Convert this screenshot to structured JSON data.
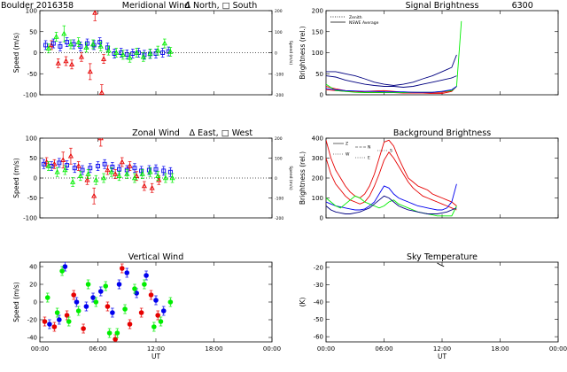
{
  "page": {
    "site": "Boulder",
    "date_code": "2016358"
  },
  "chart_data": [
    {
      "id": "meridional",
      "type": "scatter",
      "title": "Meridional Wind",
      "legend_text": "Δ North, □ South",
      "xlabel": "",
      "ylabel": "Speed (m/s)",
      "ylabel_right": "Speed (m/s)",
      "xlim": [
        0,
        24
      ],
      "ylim": [
        -100,
        100
      ],
      "yticks": [
        -100,
        -50,
        0,
        50,
        100
      ],
      "yticks_right": [
        "-200",
        "-100",
        "0",
        "100",
        "200"
      ],
      "xticks": [],
      "grid": false,
      "series": [
        {
          "color": "#e60000",
          "x": [
            1.2,
            1.9,
            2.7,
            3.3,
            4.3,
            5.2,
            5.7,
            6.4,
            6.6
          ],
          "y": [
            18,
            -25,
            -20,
            -28,
            -10,
            -45,
            95,
            -95,
            -15
          ]
        },
        {
          "color": "#0000ee",
          "x": [
            0.6,
            1.4,
            2.1,
            2.8,
            3.5,
            4.2,
            4.9,
            5.6,
            6.2,
            7.0,
            7.7,
            8.4,
            9.0,
            9.6,
            10.2,
            10.8,
            11.4,
            12.0,
            12.7,
            13.3
          ],
          "y": [
            18,
            22,
            15,
            25,
            20,
            15,
            22,
            18,
            25,
            12,
            -2,
            0,
            -4,
            -2,
            0,
            -5,
            -3,
            -2,
            0,
            3
          ]
        },
        {
          "color": "#00ee00",
          "x": [
            0.9,
            1.7,
            2.5,
            3.2,
            4.0,
            4.8,
            5.5,
            6.3,
            7.1,
            7.9,
            8.6,
            9.3,
            10.0,
            10.7,
            11.4,
            12.2,
            12.9,
            13.5
          ],
          "y": [
            10,
            38,
            45,
            20,
            25,
            12,
            20,
            15,
            5,
            0,
            -5,
            -12,
            0,
            -10,
            -2,
            5,
            22,
            2
          ]
        }
      ]
    },
    {
      "id": "signal",
      "type": "line",
      "title": "Signal Brightness",
      "wavelength": "6300",
      "xlabel": "",
      "ylabel": "Brightness (rel.)",
      "xlim": [
        0,
        24
      ],
      "ylim": [
        0,
        200
      ],
      "yticks": [
        0,
        50,
        100,
        150,
        200
      ],
      "xticks": [],
      "grid": false,
      "legend": [
        "Zenith",
        "NSWE Average"
      ],
      "series": [
        {
          "color": "#000080",
          "x": [
            0,
            1,
            2,
            3,
            4,
            5,
            6,
            7,
            8,
            9,
            10,
            11,
            12,
            13,
            13.5
          ],
          "y": [
            55,
            55,
            50,
            45,
            38,
            30,
            25,
            22,
            25,
            30,
            38,
            45,
            55,
            65,
            95
          ]
        },
        {
          "color": "#000080",
          "x": [
            0,
            1,
            2,
            3,
            4,
            5,
            6,
            7,
            8,
            9,
            10,
            11,
            12,
            13,
            13.5
          ],
          "y": [
            45,
            42,
            35,
            30,
            25,
            22,
            20,
            20,
            18,
            20,
            25,
            30,
            35,
            40,
            45
          ]
        },
        {
          "color": "#e60000",
          "x": [
            0,
            1,
            2,
            3,
            4,
            5,
            6,
            7,
            8,
            9,
            10,
            11,
            12,
            13,
            13.5
          ],
          "y": [
            20,
            14,
            10,
            8,
            8,
            9,
            10,
            8,
            6,
            6,
            5,
            5,
            6,
            10,
            20
          ]
        },
        {
          "color": "#e60000",
          "x": [
            0,
            1,
            2,
            3,
            4,
            5,
            6,
            7,
            8,
            9,
            10,
            11,
            12,
            13,
            13.5
          ],
          "y": [
            12,
            10,
            8,
            8,
            6,
            6,
            5,
            5,
            4,
            4,
            4,
            3,
            3,
            8,
            20
          ]
        },
        {
          "color": "#00ee00",
          "x": [
            0,
            1,
            2,
            3,
            4,
            5,
            6,
            7,
            8,
            9,
            10,
            11,
            12,
            13,
            13.5,
            14
          ],
          "y": [
            25,
            10,
            8,
            6,
            5,
            5,
            5,
            5,
            5,
            6,
            6,
            6,
            8,
            10,
            20,
            175
          ]
        },
        {
          "color": "#0000ee",
          "x": [
            0,
            1,
            2,
            3,
            4,
            5,
            6,
            7,
            8,
            9,
            10,
            11,
            12,
            13,
            13.5
          ],
          "y": [
            15,
            12,
            10,
            9,
            8,
            8,
            7,
            7,
            7,
            6,
            6,
            6,
            8,
            12,
            20
          ]
        }
      ]
    },
    {
      "id": "zonal",
      "type": "scatter",
      "title": "Zonal Wind",
      "legend_text": "Δ East, □ West",
      "xlabel": "",
      "ylabel": "Speed (m/s)",
      "ylabel_right": "Speed (m/s)",
      "xlim": [
        0,
        24
      ],
      "ylim": [
        -100,
        100
      ],
      "yticks": [
        -100,
        -50,
        0,
        50,
        100
      ],
      "yticks_right": [
        "-200",
        "-100",
        "0",
        "100",
        "200"
      ],
      "xticks": [],
      "grid": false,
      "series": [
        {
          "color": "#e60000",
          "x": [
            0.7,
            1.5,
            2.4,
            3.2,
            4.0,
            4.9,
            5.6,
            6.3,
            7.0,
            7.8,
            8.5,
            9.3,
            10.0,
            10.8,
            11.6,
            12.3
          ],
          "y": [
            40,
            35,
            45,
            55,
            30,
            -5,
            -45,
            100,
            20,
            10,
            40,
            30,
            5,
            -20,
            -25,
            -5
          ]
        },
        {
          "color": "#0000ee",
          "x": [
            0.4,
            1.2,
            2.0,
            2.8,
            3.6,
            4.4,
            5.2,
            6.0,
            6.7,
            7.5,
            8.2,
            9.0,
            9.8,
            10.5,
            11.3,
            12.0,
            12.8,
            13.5
          ],
          "y": [
            35,
            30,
            38,
            32,
            25,
            20,
            25,
            30,
            35,
            28,
            22,
            20,
            25,
            18,
            20,
            22,
            18,
            15
          ]
        },
        {
          "color": "#00ee00",
          "x": [
            0.9,
            1.8,
            2.6,
            3.4,
            4.2,
            5.0,
            5.8,
            6.6,
            7.4,
            8.2,
            9.0,
            9.8,
            10.6,
            11.4,
            12.2,
            13.0,
            13.7
          ],
          "y": [
            30,
            15,
            20,
            -10,
            5,
            10,
            -5,
            0,
            15,
            5,
            10,
            0,
            10,
            15,
            5,
            0,
            0
          ]
        }
      ]
    },
    {
      "id": "background",
      "type": "line",
      "title": "Background Brightness",
      "xlabel": "",
      "ylabel": "Brightness (rel.)",
      "xlim": [
        0,
        24
      ],
      "ylim": [
        0,
        400
      ],
      "yticks": [
        0,
        100,
        200,
        300,
        400
      ],
      "xticks": [],
      "grid": false,
      "legend": [
        "Z",
        "N",
        "S",
        "W",
        "E"
      ],
      "series": [
        {
          "color": "#e60000",
          "x": [
            0,
            0.5,
            1,
            1.5,
            2,
            2.5,
            3,
            3.5,
            4,
            4.5,
            5,
            5.5,
            6,
            6.5,
            7,
            7.5,
            8,
            8.5,
            9,
            9.5,
            10,
            10.5,
            11,
            11.5,
            12,
            12.5,
            13,
            13.5
          ],
          "y": [
            390,
            300,
            240,
            200,
            160,
            130,
            110,
            100,
            120,
            160,
            220,
            300,
            380,
            390,
            360,
            300,
            250,
            200,
            180,
            160,
            150,
            140,
            120,
            110,
            100,
            90,
            80,
            60
          ]
        },
        {
          "color": "#e60000",
          "x": [
            0,
            0.5,
            1,
            1.5,
            2,
            2.5,
            3,
            3.5,
            4,
            4.5,
            5,
            5.5,
            6,
            6.5,
            7,
            7.5,
            8,
            8.5,
            9,
            9.5,
            10,
            10.5,
            11,
            11.5,
            12,
            12.5,
            13,
            13.5
          ],
          "y": [
            300,
            220,
            170,
            140,
            110,
            90,
            80,
            70,
            80,
            110,
            160,
            220,
            290,
            330,
            300,
            260,
            220,
            180,
            150,
            130,
            110,
            100,
            90,
            80,
            70,
            60,
            50,
            40
          ]
        },
        {
          "color": "#0000ee",
          "x": [
            0,
            0.5,
            1,
            1.5,
            2,
            2.5,
            3,
            3.5,
            4,
            4.5,
            5,
            5.5,
            6,
            6.5,
            7,
            7.5,
            8,
            8.5,
            9,
            9.5,
            10,
            10.5,
            11,
            11.5,
            12,
            12.5,
            13,
            13.5
          ],
          "y": [
            80,
            70,
            60,
            55,
            50,
            45,
            40,
            40,
            45,
            60,
            80,
            120,
            160,
            150,
            120,
            100,
            90,
            80,
            70,
            60,
            55,
            50,
            45,
            40,
            40,
            50,
            80,
            170
          ]
        },
        {
          "color": "#00ee00",
          "x": [
            0,
            0.5,
            1,
            1.5,
            2,
            2.5,
            3,
            3.5,
            4,
            4.5,
            5,
            5.5,
            6,
            6.5,
            7,
            7.5,
            8,
            8.5,
            9,
            9.5,
            10,
            10.5,
            11,
            11.5,
            12,
            12.5,
            13,
            13.5
          ],
          "y": [
            100,
            80,
            60,
            50,
            70,
            90,
            110,
            100,
            80,
            70,
            60,
            50,
            60,
            80,
            90,
            70,
            60,
            50,
            40,
            30,
            25,
            20,
            15,
            10,
            10,
            10,
            10,
            60
          ]
        },
        {
          "color": "#000080",
          "x": [
            0,
            0.5,
            1,
            1.5,
            2,
            2.5,
            3,
            3.5,
            4,
            4.5,
            5,
            5.5,
            6,
            6.5,
            7,
            7.5,
            8,
            8.5,
            9,
            9.5,
            10,
            10.5,
            11,
            11.5,
            12,
            12.5,
            13,
            13.5
          ],
          "y": [
            60,
            40,
            30,
            25,
            20,
            20,
            25,
            30,
            40,
            50,
            70,
            90,
            110,
            100,
            80,
            60,
            50,
            40,
            35,
            30,
            25,
            20,
            20,
            20,
            25,
            30,
            40,
            50
          ]
        }
      ]
    },
    {
      "id": "vertical",
      "type": "scatter",
      "title": "Vertical Wind",
      "xlabel": "UT",
      "ylabel": "Speed (m/s)",
      "xlim": [
        0,
        24
      ],
      "ylim": [
        -45,
        45
      ],
      "yticks": [
        -40,
        -20,
        0,
        20,
        40
      ],
      "xticks": [
        "00:00",
        "06:00",
        "12:00",
        "18:00",
        "00:00"
      ],
      "grid": false,
      "series": [
        {
          "color": "#e60000",
          "x": [
            0.5,
            1.5,
            2.8,
            3.5,
            4.5,
            7.0,
            7.8,
            8.5,
            9.3,
            10.5,
            11.5,
            12.2
          ],
          "y": [
            -22,
            -28,
            -15,
            8,
            -30,
            -5,
            -42,
            38,
            -25,
            -12,
            8,
            -15
          ]
        },
        {
          "color": "#0000ee",
          "x": [
            1.0,
            2.0,
            2.6,
            3.8,
            4.8,
            5.5,
            6.3,
            7.5,
            8.2,
            9.0,
            10.0,
            11.0,
            12.0,
            12.8
          ],
          "y": [
            -25,
            -20,
            40,
            0,
            -5,
            5,
            12,
            -12,
            20,
            33,
            10,
            30,
            2,
            -10
          ]
        },
        {
          "color": "#00ee00",
          "x": [
            0.8,
            1.8,
            2.3,
            3.0,
            4.0,
            5.0,
            5.8,
            6.8,
            7.2,
            8.0,
            8.8,
            9.8,
            10.8,
            11.8,
            12.5,
            13.5
          ],
          "y": [
            5,
            -12,
            35,
            -22,
            -10,
            20,
            0,
            18,
            -35,
            -35,
            -8,
            15,
            20,
            -28,
            -22,
            0
          ]
        }
      ]
    },
    {
      "id": "skytemp",
      "type": "line",
      "title": "Sky Temperature",
      "xlabel": "UT",
      "ylabel": "(K)",
      "xlim": [
        0,
        24
      ],
      "ylim": [
        -63,
        -17
      ],
      "yticks": [
        -60,
        -50,
        -40,
        -30,
        -20
      ],
      "xticks": [
        "00:00",
        "06:00",
        "12:00",
        "18:00",
        "00:00"
      ],
      "grid": false,
      "series": [
        {
          "color": "#000000",
          "x": [
            11.5,
            11.8,
            12.2
          ],
          "y": [
            -17.5,
            -18.5,
            -19.5
          ]
        }
      ]
    }
  ]
}
